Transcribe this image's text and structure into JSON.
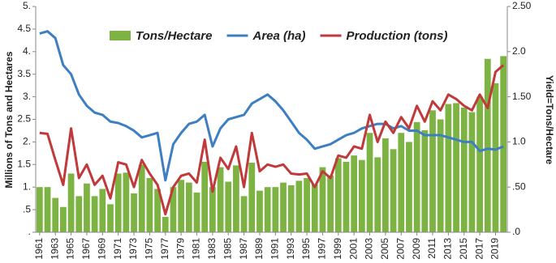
{
  "chart_data": {
    "type": "combo",
    "x": [
      1961,
      1962,
      1963,
      1964,
      1965,
      1966,
      1967,
      1968,
      1969,
      1970,
      1971,
      1972,
      1973,
      1974,
      1975,
      1976,
      1977,
      1978,
      1979,
      1980,
      1981,
      1982,
      1983,
      1984,
      1985,
      1986,
      1987,
      1988,
      1989,
      1990,
      1991,
      1992,
      1993,
      1994,
      1995,
      1996,
      1997,
      1998,
      1999,
      2000,
      2001,
      2002,
      2003,
      2004,
      2005,
      2006,
      2007,
      2008,
      2009,
      2010,
      2011,
      2012,
      2013,
      2014,
      2015,
      2016,
      2017,
      2018,
      2019,
      2020
    ],
    "xlim": [
      1960.5,
      2020.5
    ],
    "xticks": [
      1961,
      1963,
      1965,
      1967,
      1969,
      1971,
      1973,
      1975,
      1977,
      1979,
      1981,
      1983,
      1985,
      1987,
      1989,
      1991,
      1993,
      1995,
      1997,
      1999,
      2001,
      2003,
      2005,
      2007,
      2009,
      2011,
      2013,
      2015,
      2017,
      2019
    ],
    "ylabel": "Millions of Tons and Hectares",
    "y2label": "Yield=Tons/Hectare",
    "ylim": [
      0,
      5
    ],
    "yticks": [
      {
        "value": 0,
        "label": "."
      },
      {
        "value": 0.5,
        "label": ".5"
      },
      {
        "value": 1,
        "label": "1."
      },
      {
        "value": 1.5,
        "label": "1.5"
      },
      {
        "value": 2,
        "label": "2."
      },
      {
        "value": 2.5,
        "label": "2.5"
      },
      {
        "value": 3,
        "label": "3."
      },
      {
        "value": 3.5,
        "label": "3.5"
      },
      {
        "value": 4,
        "label": "4."
      },
      {
        "value": 4.5,
        "label": "4.5"
      },
      {
        "value": 5,
        "label": "5."
      }
    ],
    "y2lim": [
      0,
      2.5
    ],
    "y2ticks": [
      {
        "value": 0,
        "label": ".0"
      },
      {
        "value": 0.5,
        "label": ".50"
      },
      {
        "value": 1,
        "label": "1.0"
      },
      {
        "value": 1.5,
        "label": "1.50"
      },
      {
        "value": 2,
        "label": "2.0"
      },
      {
        "value": 2.5,
        "label": "2.50"
      }
    ],
    "grid": false,
    "series": [
      {
        "name": "Tons/Hectare",
        "type": "bar",
        "axis": "y2",
        "color": "#7cb342",
        "values": [
          0.5,
          0.5,
          0.38,
          0.28,
          0.65,
          0.4,
          0.54,
          0.4,
          0.48,
          0.31,
          0.65,
          0.66,
          0.43,
          0.75,
          0.6,
          0.48,
          0.17,
          0.5,
          0.58,
          0.55,
          0.44,
          0.78,
          0.5,
          0.72,
          0.56,
          0.74,
          0.4,
          0.77,
          0.46,
          0.5,
          0.5,
          0.55,
          0.52,
          0.57,
          0.6,
          0.53,
          0.72,
          0.63,
          0.82,
          0.78,
          0.85,
          0.8,
          1.1,
          0.83,
          1.04,
          0.92,
          1.1,
          1.0,
          1.22,
          1.13,
          1.35,
          1.25,
          1.42,
          1.43,
          1.38,
          1.33,
          1.5,
          1.92,
          1.65,
          1.95
        ]
      },
      {
        "name": "Area (ha)",
        "type": "line",
        "color": "#3d7fc1",
        "values": [
          4.4,
          4.45,
          4.3,
          3.7,
          3.5,
          3.05,
          2.8,
          2.65,
          2.6,
          2.45,
          2.42,
          2.35,
          2.25,
          2.1,
          2.15,
          2.2,
          1.15,
          1.95,
          2.2,
          2.4,
          2.45,
          2.6,
          1.9,
          2.3,
          2.5,
          2.55,
          2.6,
          2.85,
          2.95,
          3.05,
          2.9,
          2.7,
          2.45,
          2.2,
          2.05,
          1.85,
          1.9,
          1.95,
          2.05,
          2.15,
          2.2,
          2.3,
          2.35,
          2.4,
          2.4,
          2.3,
          2.35,
          2.25,
          2.25,
          2.15,
          2.15,
          2.15,
          2.1,
          2.05,
          2.0,
          2.0,
          1.8,
          1.85,
          1.83,
          1.9
        ]
      },
      {
        "name": "Production (tons)",
        "type": "line",
        "color": "#c0393b",
        "values": [
          2.2,
          2.18,
          1.6,
          1.05,
          2.3,
          1.2,
          1.5,
          1.05,
          1.25,
          0.75,
          1.55,
          1.5,
          1.0,
          1.6,
          1.3,
          1.05,
          0.4,
          1.0,
          1.25,
          1.3,
          1.1,
          2.05,
          0.9,
          1.65,
          1.4,
          1.9,
          1.0,
          2.2,
          1.35,
          1.5,
          1.45,
          1.5,
          1.3,
          1.28,
          1.3,
          1.0,
          1.35,
          1.2,
          1.7,
          1.65,
          1.9,
          1.85,
          2.6,
          2.0,
          2.45,
          2.2,
          2.55,
          2.3,
          2.8,
          2.45,
          2.9,
          2.7,
          3.05,
          2.95,
          2.8,
          2.7,
          3.05,
          2.75,
          3.55,
          3.7
        ]
      }
    ]
  }
}
